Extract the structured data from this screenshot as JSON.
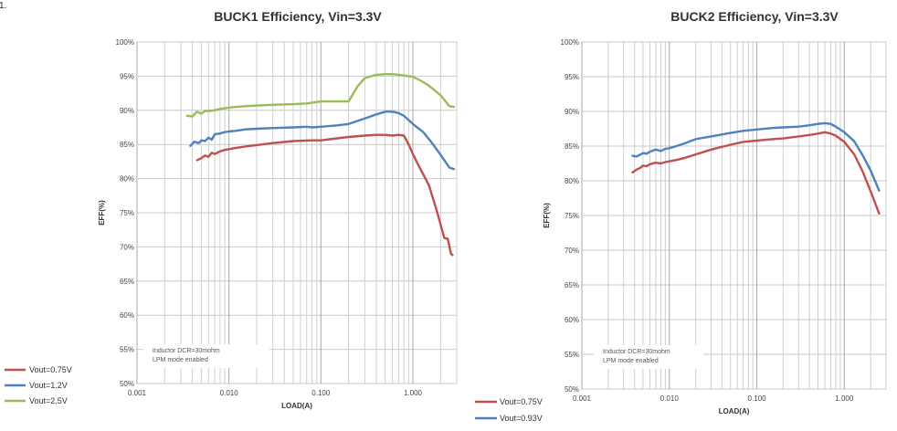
{
  "corner_mark": "1.",
  "chart_data": [
    {
      "type": "line",
      "title": "BUCK1 Efficiency, Vin=3.3V",
      "xlabel": "LOAD(A)",
      "ylabel": "EFF(%)",
      "xscale": "log",
      "xlim": [
        0.001,
        3
      ],
      "ylim": [
        50,
        100
      ],
      "grid": true,
      "xticks": [
        {
          "value": 0.001,
          "label": "0.001"
        },
        {
          "value": 0.01,
          "label": "0.010"
        },
        {
          "value": 0.1,
          "label": "0.100"
        },
        {
          "value": 1,
          "label": "1.000"
        }
      ],
      "yticks": [
        {
          "value": 50,
          "label": "50%"
        },
        {
          "value": 55,
          "label": "55%"
        },
        {
          "value": 60,
          "label": "60%"
        },
        {
          "value": 65,
          "label": "65%"
        },
        {
          "value": 70,
          "label": "70%"
        },
        {
          "value": 75,
          "label": "75%"
        },
        {
          "value": 80,
          "label": "80%"
        },
        {
          "value": 85,
          "label": "85%"
        },
        {
          "value": 90,
          "label": "90%"
        },
        {
          "value": 95,
          "label": "95%"
        },
        {
          "value": 100,
          "label": "100%"
        }
      ],
      "annotation": [
        "Inductor DCR=30mohm",
        "LPM mode enabled"
      ],
      "legend_position": "outside-bottom-left",
      "series": [
        {
          "name": "Vout=0.75V",
          "color": "#c0504d",
          "x": [
            0.0045,
            0.005,
            0.0055,
            0.006,
            0.0065,
            0.007,
            0.008,
            0.009,
            0.01,
            0.012,
            0.015,
            0.02,
            0.03,
            0.05,
            0.08,
            0.1,
            0.15,
            0.2,
            0.3,
            0.4,
            0.5,
            0.6,
            0.7,
            0.8,
            0.9,
            1.0,
            1.2,
            1.5,
            1.8,
            2.0,
            2.2,
            2.4,
            2.6,
            2.7
          ],
          "y": [
            82.7,
            83.0,
            83.4,
            83.2,
            83.8,
            83.6,
            84.0,
            84.2,
            84.3,
            84.5,
            84.7,
            84.9,
            85.2,
            85.5,
            85.6,
            85.6,
            85.9,
            86.1,
            86.3,
            86.4,
            86.4,
            86.3,
            86.4,
            86.3,
            85.0,
            83.6,
            81.5,
            79.0,
            75.5,
            73.3,
            71.3,
            71.2,
            69.0,
            68.8
          ]
        },
        {
          "name": "Vout=1.2V",
          "color": "#4f81bd",
          "x": [
            0.0038,
            0.0042,
            0.0047,
            0.005,
            0.0055,
            0.006,
            0.0065,
            0.007,
            0.008,
            0.009,
            0.01,
            0.012,
            0.015,
            0.02,
            0.03,
            0.05,
            0.07,
            0.08,
            0.1,
            0.15,
            0.2,
            0.3,
            0.4,
            0.5,
            0.6,
            0.7,
            0.8,
            1.0,
            1.3,
            1.6,
            2.0,
            2.5,
            2.8
          ],
          "y": [
            84.8,
            85.4,
            85.2,
            85.6,
            85.5,
            86.0,
            85.7,
            86.5,
            86.6,
            86.8,
            86.9,
            87.0,
            87.2,
            87.3,
            87.4,
            87.5,
            87.6,
            87.5,
            87.6,
            87.8,
            88.0,
            88.8,
            89.4,
            89.8,
            89.8,
            89.6,
            89.2,
            88.0,
            86.8,
            85.3,
            83.5,
            81.6,
            81.4
          ]
        },
        {
          "name": "Vout=2.5V",
          "color": "#9bbb59",
          "x": [
            0.0035,
            0.004,
            0.0045,
            0.005,
            0.0055,
            0.006,
            0.007,
            0.008,
            0.009,
            0.01,
            0.012,
            0.015,
            0.02,
            0.03,
            0.05,
            0.07,
            0.1,
            0.15,
            0.2,
            0.25,
            0.3,
            0.4,
            0.5,
            0.6,
            0.7,
            0.8,
            1.0,
            1.2,
            1.5,
            2.0,
            2.5,
            2.8
          ],
          "y": [
            89.2,
            89.1,
            89.8,
            89.5,
            89.9,
            89.9,
            90.0,
            90.2,
            90.3,
            90.4,
            90.5,
            90.6,
            90.7,
            90.8,
            90.9,
            91.0,
            91.3,
            91.3,
            91.3,
            93.5,
            94.7,
            95.2,
            95.3,
            95.3,
            95.2,
            95.1,
            94.9,
            94.4,
            93.6,
            92.2,
            90.6,
            90.5
          ]
        }
      ]
    },
    {
      "type": "line",
      "title": "BUCK2 Efficiency, Vin=3.3V",
      "xlabel": "LOAD(A)",
      "ylabel": "EFF(%)",
      "xscale": "log",
      "xlim": [
        0.001,
        3
      ],
      "ylim": [
        50,
        100
      ],
      "grid": true,
      "xticks": [
        {
          "value": 0.001,
          "label": "0.001"
        },
        {
          "value": 0.01,
          "label": "0.010"
        },
        {
          "value": 0.1,
          "label": "0.100"
        },
        {
          "value": 1,
          "label": "1.000"
        }
      ],
      "yticks": [
        {
          "value": 50,
          "label": "50%"
        },
        {
          "value": 55,
          "label": "55%"
        },
        {
          "value": 60,
          "label": "60%"
        },
        {
          "value": 65,
          "label": "65%"
        },
        {
          "value": 70,
          "label": "70%"
        },
        {
          "value": 75,
          "label": "75%"
        },
        {
          "value": 80,
          "label": "80%"
        },
        {
          "value": 85,
          "label": "85%"
        },
        {
          "value": 90,
          "label": "90%"
        },
        {
          "value": 95,
          "label": "95%"
        },
        {
          "value": 100,
          "label": "100%"
        }
      ],
      "annotation": [
        "Inductor DCR=30mohm",
        "LPM mode enabled"
      ],
      "legend_position": "outside-bottom-left",
      "series": [
        {
          "name": "Vout=0.75V",
          "color": "#c0504d",
          "x": [
            0.0038,
            0.0042,
            0.0047,
            0.005,
            0.0055,
            0.006,
            0.007,
            0.008,
            0.009,
            0.01,
            0.012,
            0.015,
            0.02,
            0.03,
            0.05,
            0.07,
            0.1,
            0.15,
            0.2,
            0.3,
            0.4,
            0.5,
            0.6,
            0.7,
            0.8,
            1.0,
            1.3,
            1.6,
            2.0,
            2.5
          ],
          "y": [
            81.2,
            81.6,
            81.9,
            82.2,
            82.1,
            82.4,
            82.6,
            82.5,
            82.7,
            82.8,
            83.0,
            83.3,
            83.8,
            84.5,
            85.2,
            85.6,
            85.8,
            86.0,
            86.1,
            86.4,
            86.6,
            86.8,
            87.0,
            86.8,
            86.5,
            85.6,
            83.8,
            81.5,
            78.5,
            75.3
          ]
        },
        {
          "name": "Vout=0.93V",
          "color": "#4f81bd",
          "x": [
            0.0038,
            0.0042,
            0.0047,
            0.005,
            0.0055,
            0.006,
            0.007,
            0.008,
            0.009,
            0.01,
            0.012,
            0.015,
            0.02,
            0.03,
            0.05,
            0.07,
            0.1,
            0.15,
            0.2,
            0.3,
            0.4,
            0.5,
            0.6,
            0.7,
            0.8,
            1.0,
            1.3,
            1.6,
            2.0,
            2.5
          ],
          "y": [
            83.6,
            83.5,
            83.8,
            84.0,
            83.9,
            84.2,
            84.5,
            84.3,
            84.6,
            84.7,
            85.0,
            85.4,
            86.0,
            86.4,
            86.9,
            87.2,
            87.4,
            87.6,
            87.7,
            87.8,
            88.0,
            88.2,
            88.3,
            88.2,
            87.8,
            87.0,
            85.7,
            83.8,
            81.5,
            78.6
          ]
        }
      ]
    }
  ]
}
